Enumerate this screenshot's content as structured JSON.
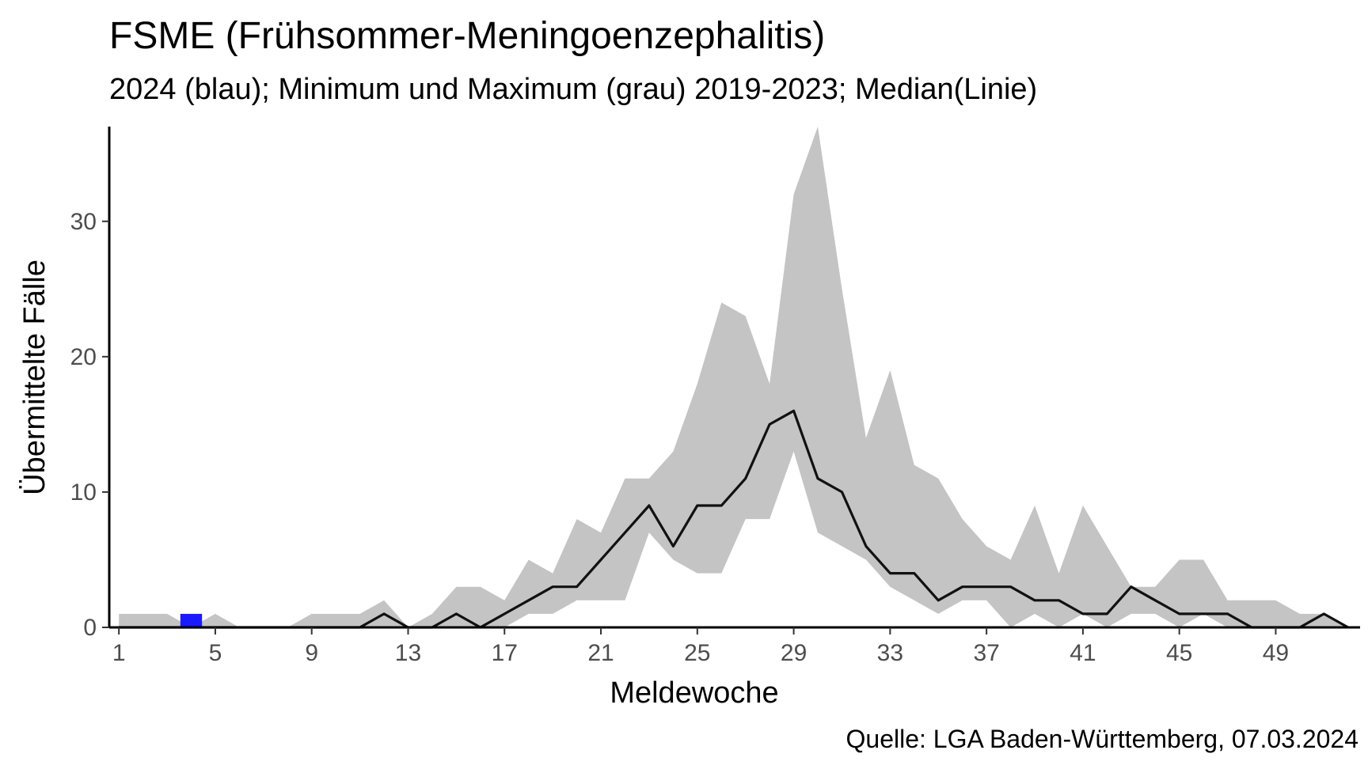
{
  "chart_data": {
    "type": "area",
    "title": "FSME (Frühsommer-Meningoenzephalitis)",
    "subtitle": "2024 (blau); Minimum und Maximum (grau) 2019-2023; Median(Linie)",
    "xlabel": "Meldewoche",
    "ylabel": "Übermittelte Fälle",
    "caption": "Quelle: LGA Baden-Württemberg, 07.03.2024",
    "xlim": [
      0.6,
      52.5
    ],
    "ylim": [
      0,
      37
    ],
    "x_ticks": [
      1,
      5,
      9,
      13,
      17,
      21,
      25,
      29,
      33,
      37,
      41,
      45,
      49
    ],
    "y_ticks": [
      0,
      10,
      20,
      30
    ],
    "grid": false,
    "colors": {
      "range": "#c4c4c4",
      "median": "#111111",
      "current": "#1a1aff",
      "axis": "#000000"
    },
    "weeks": [
      1,
      2,
      3,
      4,
      5,
      6,
      7,
      8,
      9,
      10,
      11,
      12,
      13,
      14,
      15,
      16,
      17,
      18,
      19,
      20,
      21,
      22,
      23,
      24,
      25,
      26,
      27,
      28,
      29,
      30,
      31,
      32,
      33,
      34,
      35,
      36,
      37,
      38,
      39,
      40,
      41,
      42,
      43,
      44,
      45,
      46,
      47,
      48,
      49,
      50,
      51,
      52
    ],
    "series": [
      {
        "name": "Minimum",
        "values": [
          0,
          0,
          0,
          0,
          0,
          0,
          0,
          0,
          0,
          0,
          0,
          0,
          0,
          0,
          0,
          0,
          0,
          1,
          1,
          2,
          2,
          2,
          7,
          5,
          4,
          4,
          8,
          8,
          13,
          7,
          6,
          5,
          3,
          2,
          1,
          2,
          2,
          0,
          1,
          0,
          1,
          0,
          1,
          1,
          0,
          1,
          0,
          0,
          0,
          0,
          0,
          0
        ]
      },
      {
        "name": "Maximum",
        "values": [
          1,
          1,
          1,
          0,
          1,
          0,
          0,
          0,
          1,
          1,
          1,
          2,
          0,
          1,
          3,
          3,
          2,
          5,
          4,
          8,
          7,
          11,
          11,
          13,
          18,
          24,
          23,
          18,
          32,
          37,
          25,
          14,
          19,
          12,
          11,
          8,
          6,
          5,
          9,
          4,
          9,
          6,
          3,
          3,
          5,
          5,
          2,
          2,
          2,
          1,
          1,
          0
        ]
      },
      {
        "name": "Median",
        "values": [
          0,
          0,
          0,
          0,
          0,
          0,
          0,
          0,
          0,
          0,
          0,
          1,
          0,
          0,
          1,
          0,
          1,
          2,
          3,
          3,
          5,
          7,
          9,
          6,
          9,
          9,
          11,
          15,
          16,
          11,
          10,
          6,
          4,
          4,
          2,
          3,
          3,
          3,
          2,
          2,
          1,
          1,
          3,
          2,
          1,
          1,
          1,
          0,
          0,
          0,
          1,
          0
        ]
      },
      {
        "name": "2024",
        "x": [
          4
        ],
        "values": [
          1
        ]
      }
    ]
  }
}
